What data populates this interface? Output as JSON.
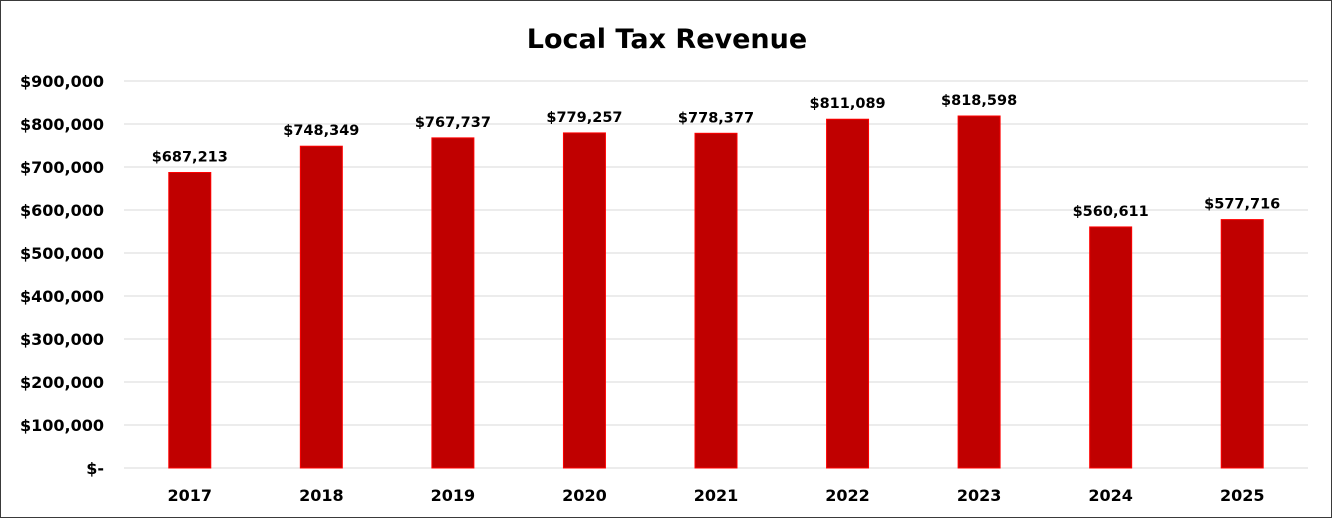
{
  "chart_data": {
    "type": "bar",
    "title": "Local Tax Revenue",
    "xlabel": "",
    "ylabel": "",
    "categories": [
      "2017",
      "2018",
      "2019",
      "2020",
      "2021",
      "2022",
      "2023",
      "2024",
      "2025"
    ],
    "values": [
      687213,
      748349,
      767737,
      779257,
      778377,
      811089,
      818598,
      560611,
      577716
    ],
    "data_labels": [
      "$687,213",
      "$748,349",
      "$767,737",
      "$779,257",
      "$778,377",
      "$811,089",
      "$818,598",
      "$560,611",
      "$577,716"
    ],
    "ylim": [
      0,
      900000
    ],
    "y_ticks": [
      0,
      100000,
      200000,
      300000,
      400000,
      500000,
      600000,
      700000,
      800000,
      900000
    ],
    "y_tick_labels": [
      "$-",
      "$100,000",
      "$200,000",
      "$300,000",
      "$400,000",
      "$500,000",
      "$600,000",
      "$700,000",
      "$800,000",
      "$900,000"
    ],
    "grid": true,
    "legend": "none",
    "colors": {
      "bar_fill": "#c00000",
      "bar_edge": "#ff0000",
      "gridline": "#d9d9d9",
      "text": "#000000"
    }
  }
}
